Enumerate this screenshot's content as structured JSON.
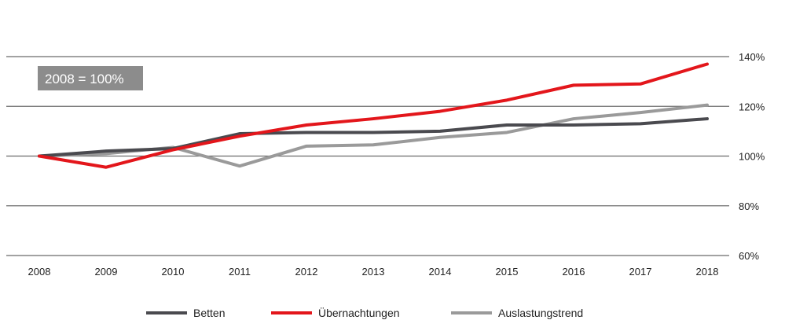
{
  "chart_data": {
    "type": "line",
    "annotation": "2008 = 100%",
    "categories": [
      "2008",
      "2009",
      "2010",
      "2011",
      "2012",
      "2013",
      "2014",
      "2015",
      "2016",
      "2017",
      "2018"
    ],
    "y_tick_labels": [
      "140%",
      "120%",
      "100%",
      "80%",
      "60%"
    ],
    "y_ticks": [
      140,
      120,
      100,
      80,
      60
    ],
    "ylim": [
      60,
      140
    ],
    "grid": true,
    "legend_position": "bottom",
    "series": [
      {
        "name": "Betten",
        "color": "#4a4a4f",
        "values": [
          100,
          102,
          103,
          109,
          109.5,
          109.5,
          110,
          112.5,
          112.5,
          113,
          115
        ]
      },
      {
        "name": "Übernachtungen",
        "color": "#e3161b",
        "values": [
          100,
          95.5,
          102.5,
          108,
          112.5,
          115,
          118,
          122.5,
          128.5,
          129,
          137
        ]
      },
      {
        "name": "Auslastungstrend",
        "color": "#9a9a9a",
        "values": [
          100,
          101,
          103.5,
          96,
          104,
          104.5,
          107.5,
          109.5,
          115,
          117.5,
          120.5
        ]
      }
    ]
  }
}
